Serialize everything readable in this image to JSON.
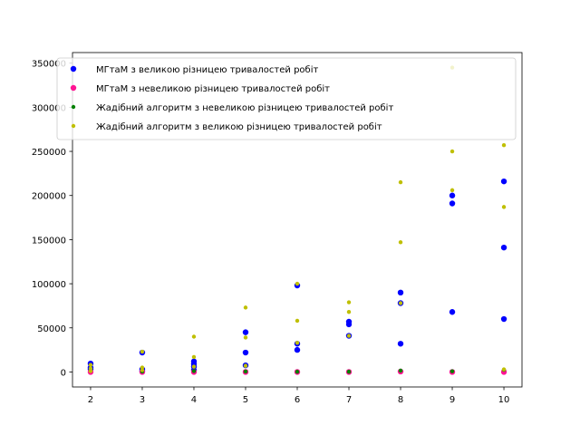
{
  "chart_data": {
    "type": "scatter",
    "title": "",
    "xlabel": "",
    "ylabel": "",
    "xlim": [
      1.65,
      10.35
    ],
    "ylim": [
      -17000,
      362000
    ],
    "xticks": [
      2,
      3,
      4,
      5,
      6,
      7,
      8,
      9,
      10
    ],
    "yticks": [
      0,
      50000,
      100000,
      150000,
      200000,
      250000,
      300000,
      350000
    ],
    "grid": false,
    "legend_position": "top-left",
    "series": [
      {
        "name": "МГтаМ з великою різницею тривалостей робіт",
        "color": "#0000ff",
        "marker_size": "large",
        "points": [
          [
            2,
            9500
          ],
          [
            2,
            5000
          ],
          [
            2,
            3000
          ],
          [
            3,
            22000
          ],
          [
            3,
            3000
          ],
          [
            3,
            1000
          ],
          [
            4,
            12000
          ],
          [
            4,
            9000
          ],
          [
            4,
            6000
          ],
          [
            4,
            2000
          ],
          [
            5,
            45000
          ],
          [
            5,
            22000
          ],
          [
            5,
            7500
          ],
          [
            6,
            98000
          ],
          [
            6,
            32000
          ],
          [
            6,
            25000
          ],
          [
            7,
            57000
          ],
          [
            7,
            54000
          ],
          [
            7,
            41000
          ],
          [
            8,
            90000
          ],
          [
            8,
            78000
          ],
          [
            8,
            32000
          ],
          [
            9,
            200000
          ],
          [
            9,
            191000
          ],
          [
            9,
            68000
          ],
          [
            10,
            216000
          ],
          [
            10,
            141000
          ],
          [
            10,
            60000
          ]
        ]
      },
      {
        "name": "МГтаМ з невеликою різницею тривалостей робіт",
        "color": "#ff1493",
        "marker_size": "large",
        "points": [
          [
            2,
            0
          ],
          [
            3,
            0
          ],
          [
            4,
            0
          ],
          [
            5,
            0
          ],
          [
            6,
            0
          ],
          [
            7,
            0
          ],
          [
            8,
            500
          ],
          [
            9,
            0
          ],
          [
            10,
            0
          ]
        ]
      },
      {
        "name": "Жадібний алгоритм з невеликою різницею тривалостей робіт",
        "color": "#008000",
        "marker_size": "small",
        "points": [
          [
            2,
            3000
          ],
          [
            3,
            500
          ],
          [
            4,
            1000
          ],
          [
            5,
            500
          ],
          [
            6,
            200
          ],
          [
            7,
            300
          ],
          [
            8,
            1500
          ],
          [
            9,
            800
          ],
          [
            10,
            2500
          ]
        ]
      },
      {
        "name": "Жадібний алгоритм з великою різницею тривалостей робіт",
        "color": "#bfbf00",
        "marker_size": "small",
        "points": [
          [
            2,
            8000
          ],
          [
            2,
            4000
          ],
          [
            2,
            1000
          ],
          [
            3,
            23000
          ],
          [
            3,
            5000
          ],
          [
            3,
            2000
          ],
          [
            4,
            40000
          ],
          [
            4,
            17000
          ],
          [
            4,
            6000
          ],
          [
            5,
            73000
          ],
          [
            5,
            39000
          ],
          [
            5,
            7000
          ],
          [
            6,
            100000
          ],
          [
            6,
            58000
          ],
          [
            6,
            33000
          ],
          [
            7,
            79000
          ],
          [
            7,
            68000
          ],
          [
            7,
            41000
          ],
          [
            8,
            215000
          ],
          [
            8,
            147000
          ],
          [
            8,
            78000
          ],
          [
            9,
            345000
          ],
          [
            9,
            250000
          ],
          [
            9,
            206000
          ],
          [
            10,
            257000
          ],
          [
            10,
            187000
          ],
          [
            10,
            3000
          ]
        ]
      }
    ]
  }
}
